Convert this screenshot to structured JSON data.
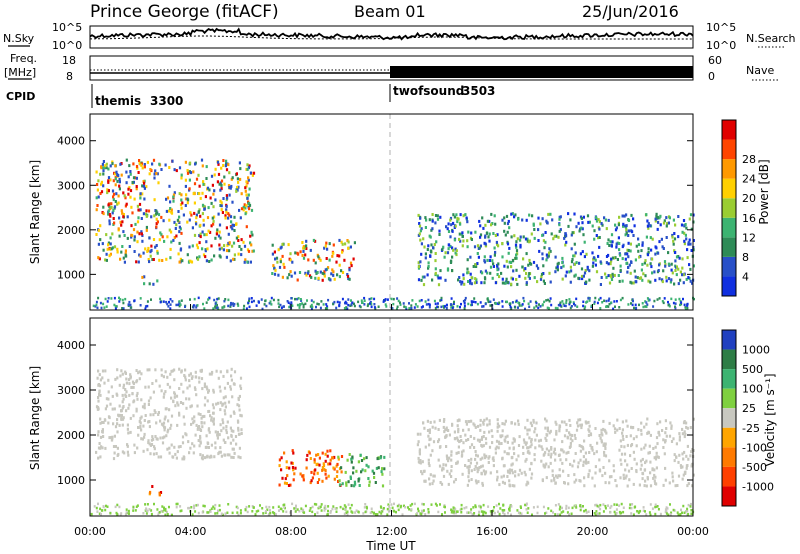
{
  "header": {
    "title": "Prince George (fitACF)",
    "beam": "Beam 01",
    "date": "25/Jun/2016"
  },
  "panels": {
    "nsky": {
      "label": "N.Sky",
      "ticks": [
        "10^5",
        "10^0"
      ],
      "right_label": "N.Search",
      "right_ticks": [
        "10^5",
        "10^0"
      ]
    },
    "freq": {
      "label_line1": "Freq.",
      "label_line2": "[MHz]",
      "ticks": [
        "18",
        "8"
      ],
      "right_label": "Nave",
      "right_ticks": [
        "60",
        "0"
      ]
    },
    "cpid": {
      "label": "CPID",
      "segments": [
        {
          "name": "themis",
          "id": "3300",
          "start_hour": 0
        },
        {
          "name": "twofsound",
          "id": "3503",
          "start_hour": 12
        }
      ]
    }
  },
  "chart_data": [
    {
      "type": "heatmap",
      "quantity": "Power",
      "ylabel": "Slant Range [km]",
      "xlabel": "Time UT",
      "xlim": [
        0,
        24
      ],
      "ylim": [
        200,
        4600
      ],
      "xticks": [
        "00:00",
        "04:00",
        "08:00",
        "12:00",
        "16:00",
        "20:00",
        "00:00"
      ],
      "yticks": [
        1000,
        2000,
        3000,
        4000
      ],
      "colorbar": {
        "label": "Power [dB]",
        "ticks": [
          4,
          8,
          12,
          16,
          20,
          24,
          28
        ],
        "colors": [
          "#1030e0",
          "#2850c8",
          "#2e8b57",
          "#3cb371",
          "#9acd32",
          "#ffd000",
          "#ff9900",
          "#ff4500",
          "#e00000"
        ]
      },
      "features": [
        {
          "t0": 0.2,
          "t1": 6.5,
          "r0": 1300,
          "r1": 3600,
          "level": "high"
        },
        {
          "t0": 2.0,
          "t1": 2.7,
          "r0": 800,
          "r1": 1000,
          "level": "high"
        },
        {
          "t0": 7.2,
          "t1": 10.5,
          "r0": 900,
          "r1": 1800,
          "level": "high"
        },
        {
          "t0": 13.0,
          "t1": 24.0,
          "r0": 800,
          "r1": 2400,
          "level": "low"
        }
      ]
    },
    {
      "type": "heatmap",
      "quantity": "Velocity",
      "ylabel": "Slant Range [km]",
      "xlabel": "Time UT",
      "xlim": [
        0,
        24
      ],
      "ylim": [
        200,
        4600
      ],
      "xticks": [
        "00:00",
        "04:00",
        "08:00",
        "12:00",
        "16:00",
        "20:00",
        "00:00"
      ],
      "yticks": [
        1000,
        2000,
        3000,
        4000
      ],
      "colorbar": {
        "label": "Velocity [m s⁻¹]",
        "ticks": [
          "1000",
          "500",
          "100",
          "25",
          "-25",
          "-100",
          "-500",
          "-1000"
        ],
        "colors": [
          "#2040c0",
          "#2e7d46",
          "#3cb371",
          "#7fd040",
          "#c8c8c0",
          "#ffa500",
          "#ff7a00",
          "#ff4000",
          "#e00000"
        ]
      },
      "features": [
        {
          "t0": 0.2,
          "t1": 6.0,
          "r0": 1500,
          "r1": 3500,
          "level": "ground"
        },
        {
          "t0": 2.3,
          "t1": 2.8,
          "r0": 700,
          "r1": 1000,
          "level": "negative"
        },
        {
          "t0": 7.5,
          "t1": 10.0,
          "r0": 900,
          "r1": 1700,
          "level": "negative"
        },
        {
          "t0": 9.8,
          "t1": 11.7,
          "r0": 900,
          "r1": 1600,
          "level": "positive"
        },
        {
          "t0": 13.0,
          "t1": 24.0,
          "r0": 900,
          "r1": 2400,
          "level": "ground"
        }
      ]
    }
  ]
}
